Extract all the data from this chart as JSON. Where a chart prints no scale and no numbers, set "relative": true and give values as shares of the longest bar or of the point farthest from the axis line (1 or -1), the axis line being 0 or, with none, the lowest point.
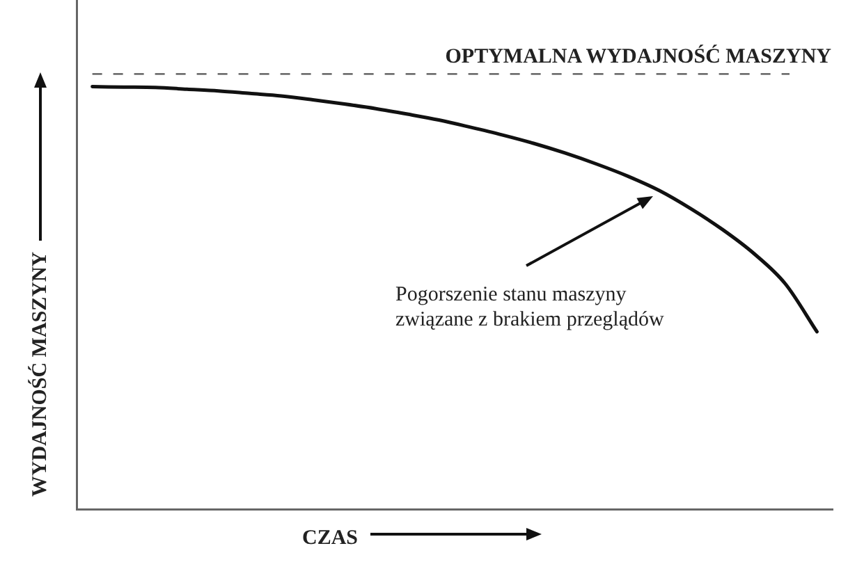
{
  "chart_data": {
    "type": "line",
    "relative": true,
    "xlabel": "CZAS",
    "ylabel": "WYDAJNOŚĆ MASZYNY",
    "categories": [
      null,
      null,
      null,
      null,
      null,
      null,
      null,
      null,
      null,
      null,
      null,
      null,
      null,
      null,
      null,
      null,
      null,
      null,
      null,
      null,
      null,
      null,
      null,
      null
    ],
    "series": [
      {
        "color": "#111111",
        "values": [
          1.0,
          0.999,
          0.998,
          0.994,
          0.99,
          0.984,
          0.978,
          0.969,
          0.959,
          0.948,
          0.935,
          0.921,
          0.904,
          0.886,
          0.866,
          0.843,
          0.817,
          0.788,
          0.754,
          0.711,
          0.662,
          0.605,
          0.533,
          0.42
        ]
      }
    ],
    "ref_lines": [
      {
        "axis": "y",
        "value": 1.03,
        "label": "OPTYMALNA WYDAJNOŚĆ MASZYNY",
        "color": "#555555",
        "line_style": "dashed"
      }
    ],
    "annotations": [
      "Pogorszenie stanu maszyny związane z brakiem przeglądów"
    ],
    "marker": "none",
    "tick_labels": false
  }
}
